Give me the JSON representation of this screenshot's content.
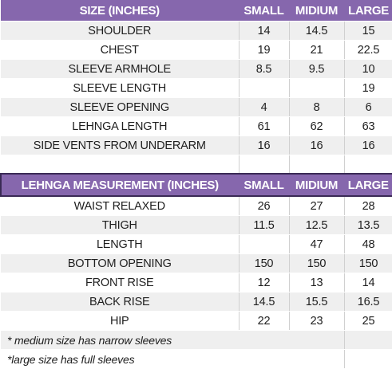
{
  "size_section": {
    "headers": [
      "SIZE (INCHES)",
      "SMALL",
      "MIDIUM",
      "LARGE"
    ],
    "rows": [
      {
        "label": "SHOULDER",
        "small": "14",
        "medium": "14.5",
        "large": "15"
      },
      {
        "label": "CHEST",
        "small": "19",
        "medium": "21",
        "large": "22.5"
      },
      {
        "label": "SLEEVE ARMHOLE",
        "small": "8.5",
        "medium": "9.5",
        "large": "10"
      },
      {
        "label": "SLEEVE LENGTH",
        "small": "",
        "medium": "",
        "large": "19"
      },
      {
        "label": "SLEEVE OPENING",
        "small": "4",
        "medium": "8",
        "large": "6"
      },
      {
        "label": "LEHNGA LENGTH",
        "small": "61",
        "medium": "62",
        "large": "63"
      },
      {
        "label": "SIDE VENTS FROM UNDERARM",
        "small": "16",
        "medium": "16",
        "large": "16"
      }
    ]
  },
  "lehnga_section": {
    "headers": [
      "LEHNGA MEASUREMENT  (INCHES)",
      "SMALL",
      "MIDIUM",
      "LARGE"
    ],
    "rows": [
      {
        "label": "WAIST RELAXED",
        "small": "26",
        "medium": "27",
        "large": "28"
      },
      {
        "label": "THIGH",
        "small": "11.5",
        "medium": "12.5",
        "large": "13.5"
      },
      {
        "label": "LENGTH",
        "small": "",
        "medium": "47",
        "large": "48"
      },
      {
        "label": "BOTTOM OPENING",
        "small": "150",
        "medium": "150",
        "large": "150"
      },
      {
        "label": "FRONT RISE",
        "small": "12",
        "medium": "13",
        "large": "14"
      },
      {
        "label": "BACK RISE",
        "small": "14.5",
        "medium": "15.5",
        "large": "16.5"
      },
      {
        "label": "HIP",
        "small": "22",
        "medium": "23",
        "large": "25"
      }
    ]
  },
  "notes": [
    "* medium size has narrow sleeves",
    "*large size has full sleeves"
  ],
  "colors": {
    "header_bg": "#8667ad",
    "stripe_bg": "#efefef",
    "header_text": "#ffffff"
  }
}
